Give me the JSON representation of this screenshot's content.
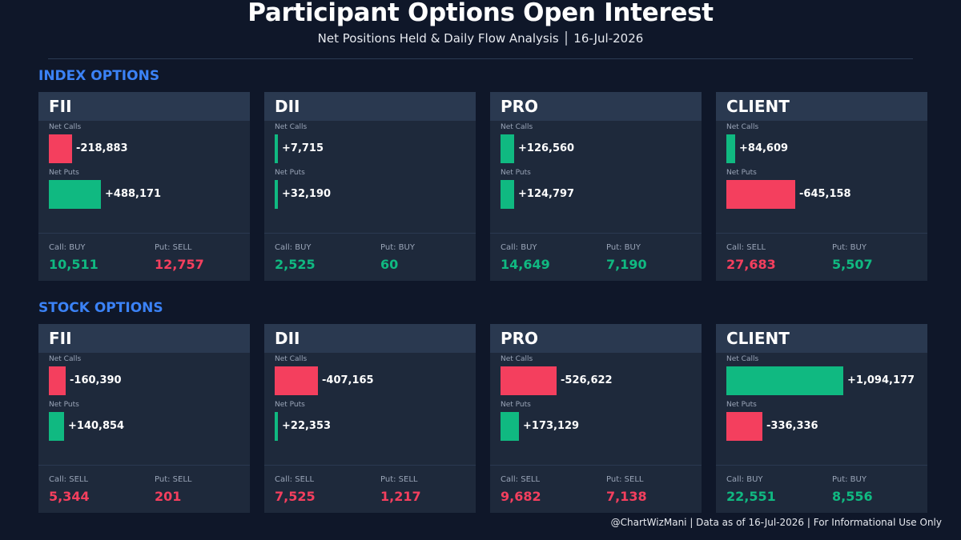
{
  "header": {
    "title": "Participant Options Open Interest",
    "subtitle": "Net Positions Held & Daily Flow Analysis  │  16-Jul-2026"
  },
  "colors": {
    "positive": "#10b981",
    "negative": "#f43f5e",
    "section": "#3b82f6"
  },
  "labels": {
    "net_calls": "Net Calls",
    "net_puts": "Net Puts"
  },
  "chart_data": {
    "type": "bar",
    "sections": [
      {
        "title": "INDEX OPTIONS",
        "participants": [
          {
            "name": "FII",
            "net_calls": -218883,
            "net_calls_text": "-218,883",
            "net_puts": 488171,
            "net_puts_text": "+488,171",
            "call_flow_label": "Call: BUY",
            "call_flow_value": "10,511",
            "put_flow_label": "Put: SELL",
            "put_flow_value": "12,757"
          },
          {
            "name": "DII",
            "net_calls": 7715,
            "net_calls_text": "+7,715",
            "net_puts": 32190,
            "net_puts_text": "+32,190",
            "call_flow_label": "Call: BUY",
            "call_flow_value": "2,525",
            "put_flow_label": "Put: BUY",
            "put_flow_value": "60"
          },
          {
            "name": "PRO",
            "net_calls": 126560,
            "net_calls_text": "+126,560",
            "net_puts": 124797,
            "net_puts_text": "+124,797",
            "call_flow_label": "Call: BUY",
            "call_flow_value": "14,649",
            "put_flow_label": "Put: BUY",
            "put_flow_value": "7,190"
          },
          {
            "name": "CLIENT",
            "net_calls": 84609,
            "net_calls_text": "+84,609",
            "net_puts": -645158,
            "net_puts_text": "-645,158",
            "call_flow_label": "Call: SELL",
            "call_flow_value": "27,683",
            "put_flow_label": "Put: BUY",
            "put_flow_value": "5,507"
          }
        ]
      },
      {
        "title": "STOCK OPTIONS",
        "participants": [
          {
            "name": "FII",
            "net_calls": -160390,
            "net_calls_text": "-160,390",
            "net_puts": 140854,
            "net_puts_text": "+140,854",
            "call_flow_label": "Call: SELL",
            "call_flow_value": "5,344",
            "put_flow_label": "Put: SELL",
            "put_flow_value": "201"
          },
          {
            "name": "DII",
            "net_calls": -407165,
            "net_calls_text": "-407,165",
            "net_puts": 22353,
            "net_puts_text": "+22,353",
            "call_flow_label": "Call: SELL",
            "call_flow_value": "7,525",
            "put_flow_label": "Put: SELL",
            "put_flow_value": "1,217"
          },
          {
            "name": "PRO",
            "net_calls": -526622,
            "net_calls_text": "-526,622",
            "net_puts": 173129,
            "net_puts_text": "+173,129",
            "call_flow_label": "Call: SELL",
            "call_flow_value": "9,682",
            "put_flow_label": "Put: SELL",
            "put_flow_value": "7,138"
          },
          {
            "name": "CLIENT",
            "net_calls": 1094177,
            "net_calls_text": "+1,094,177",
            "net_puts": -336336,
            "net_puts_text": "-336,336",
            "call_flow_label": "Call: BUY",
            "call_flow_value": "22,551",
            "put_flow_label": "Put: BUY",
            "put_flow_value": "8,556"
          }
        ]
      }
    ]
  },
  "footer": {
    "text": "@ChartWizMani | Data as of 16-Jul-2026 | For Informational Use Only"
  }
}
